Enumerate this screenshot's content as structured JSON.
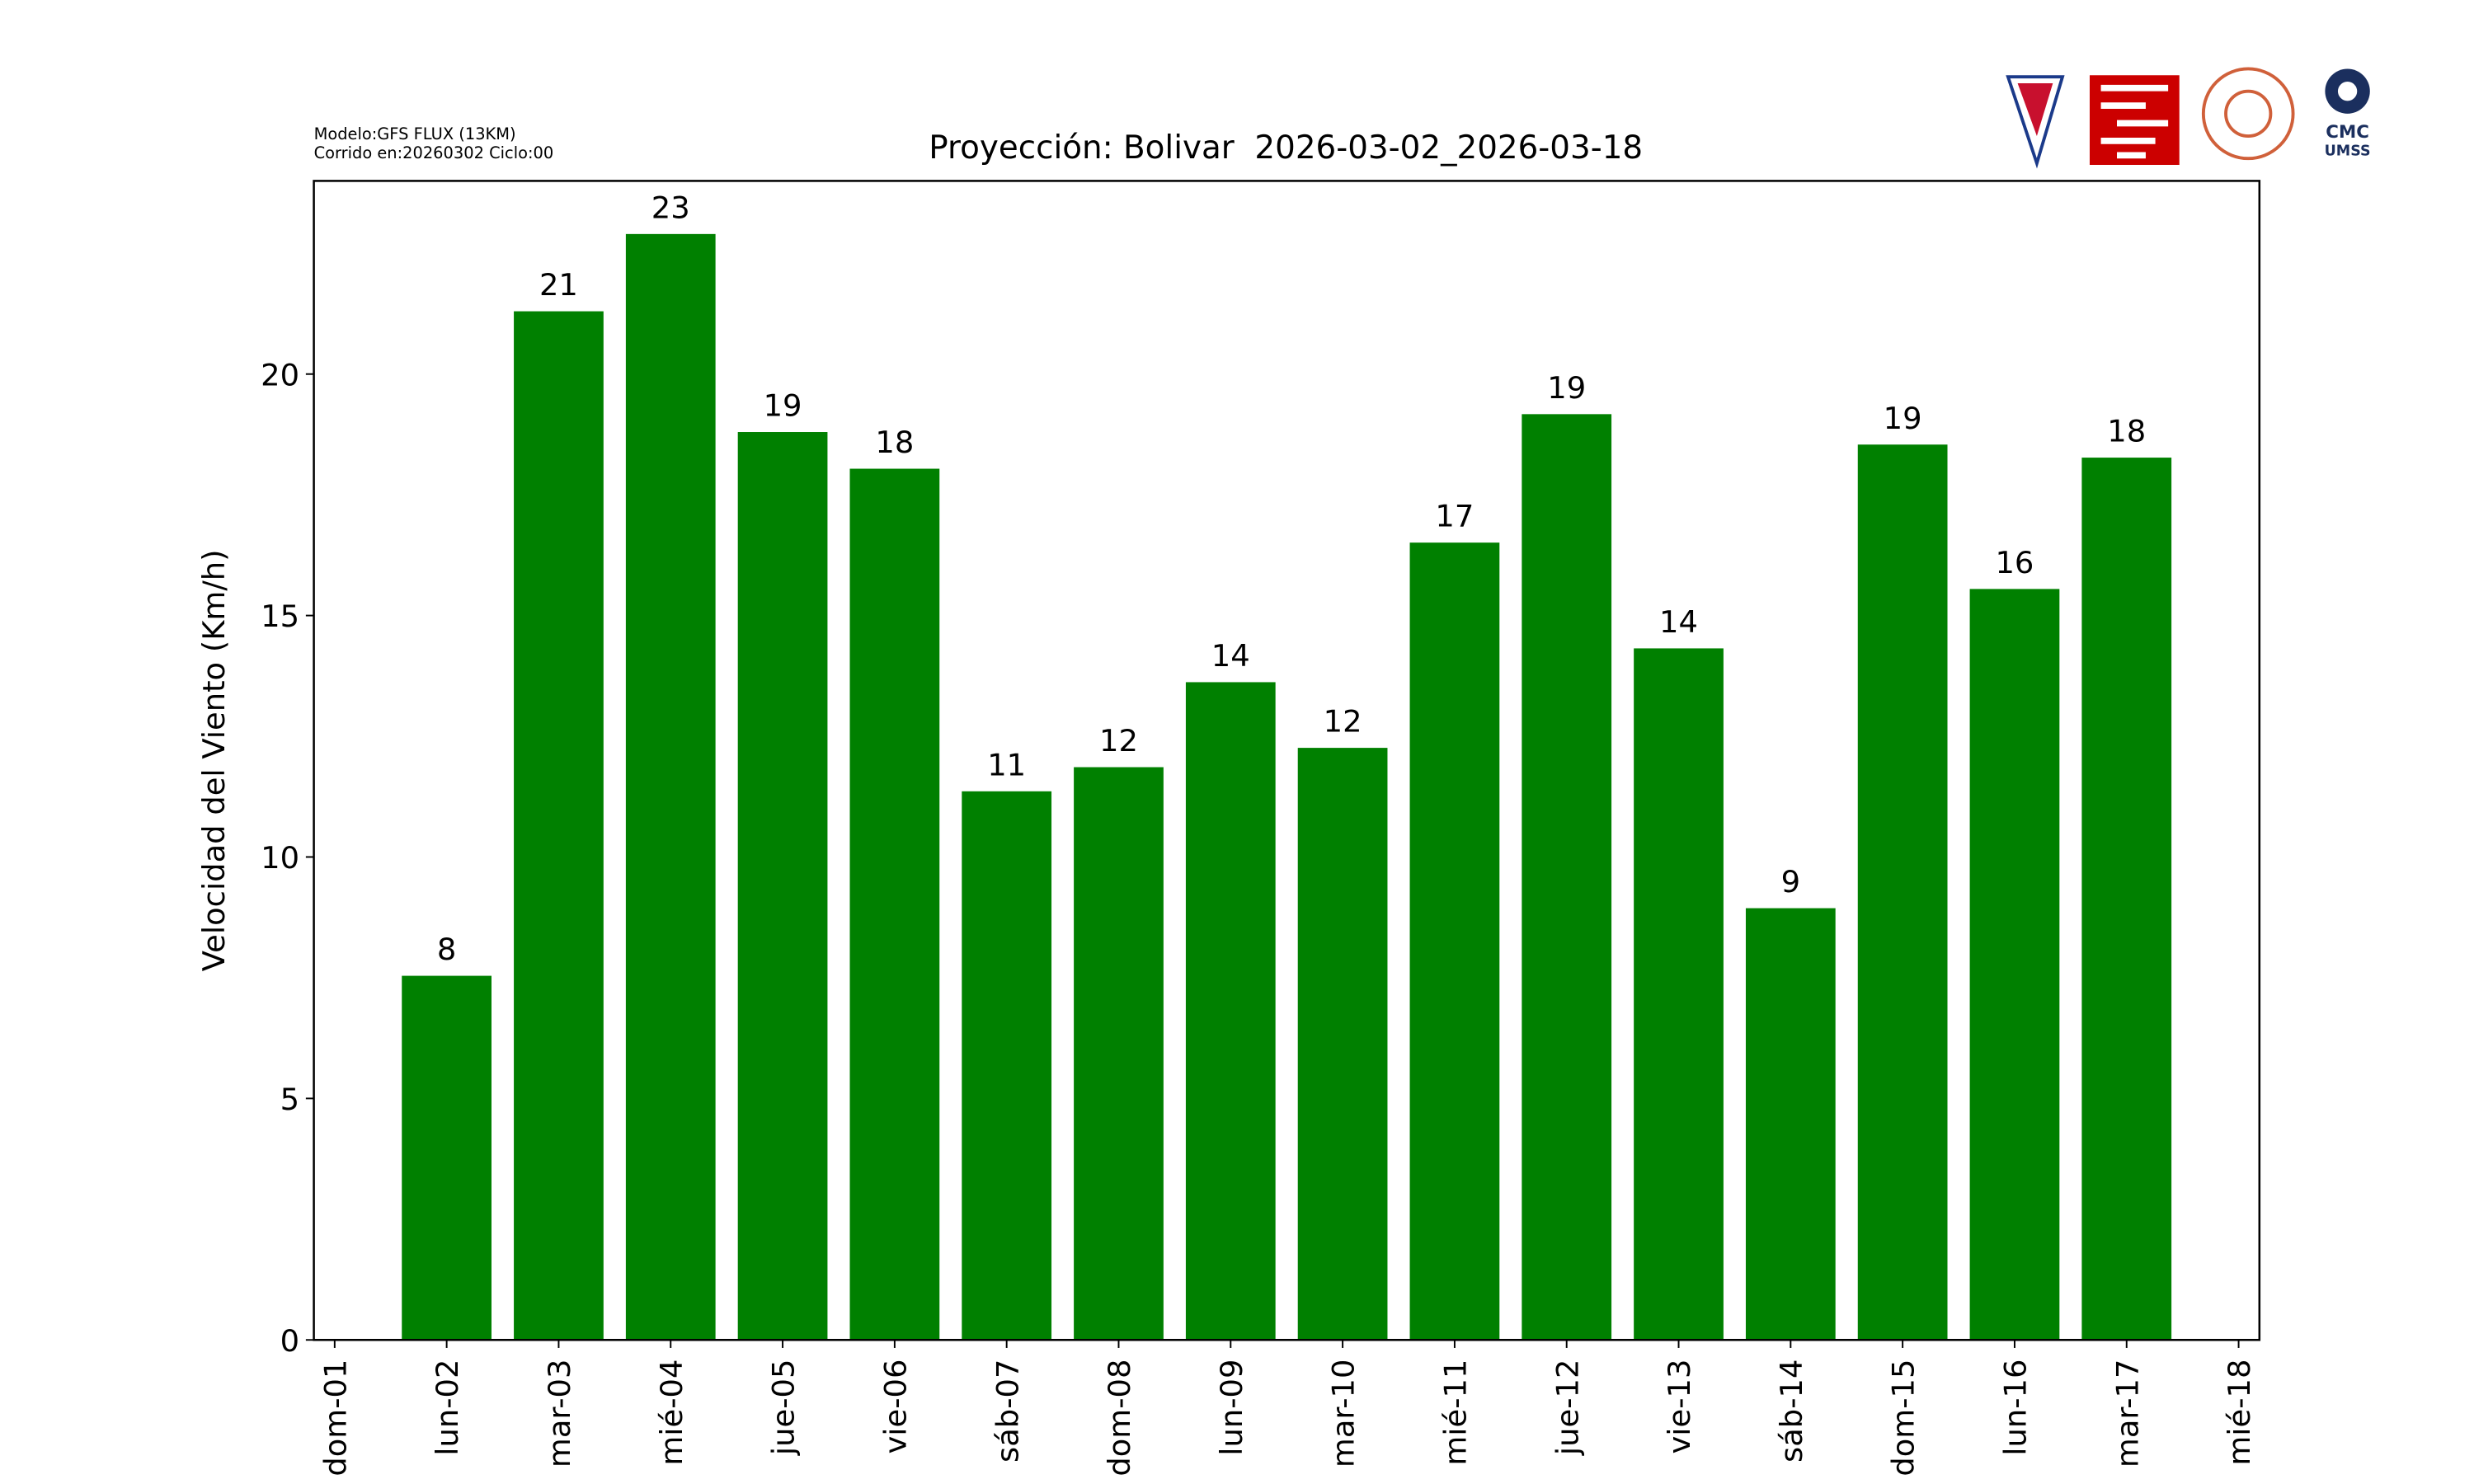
{
  "chart_data": {
    "type": "bar",
    "title": "Proyección: Bolivar  2026-03-02_2026-03-18",
    "model_note": [
      "Modelo:GFS FLUX (13KM)",
      "Corrido en:20260302 Ciclo:00"
    ],
    "y_label": "Velocidad del Viento (Km/h)",
    "categories": [
      "dom-01",
      "lun-02",
      "mar-03",
      "mié-04",
      "jue-05",
      "vie-06",
      "sáb-07",
      "dom-08",
      "lun-09",
      "mar-10",
      "mié-11",
      "jue-12",
      "vie-13",
      "sáb-14",
      "dom-15",
      "lun-16",
      "mar-17",
      "mié-18"
    ],
    "values": [
      null,
      7.54,
      21.3,
      22.9,
      18.8,
      18.04,
      11.36,
      11.86,
      13.62,
      12.26,
      16.51,
      19.17,
      14.32,
      8.94,
      18.54,
      15.55,
      18.27,
      null
    ],
    "value_labels": [
      null,
      "8",
      "21",
      "23",
      "19",
      "18",
      "11",
      "12",
      "14",
      "12",
      "17",
      "19",
      "14",
      "9",
      "19",
      "16",
      "18",
      null
    ],
    "color": "#008000",
    "ylim": [
      0,
      24
    ],
    "yticks": [
      0,
      5,
      10,
      15,
      20
    ],
    "grid": false
  },
  "logos": {
    "cmc": "CMC",
    "umss": "UMSS"
  }
}
